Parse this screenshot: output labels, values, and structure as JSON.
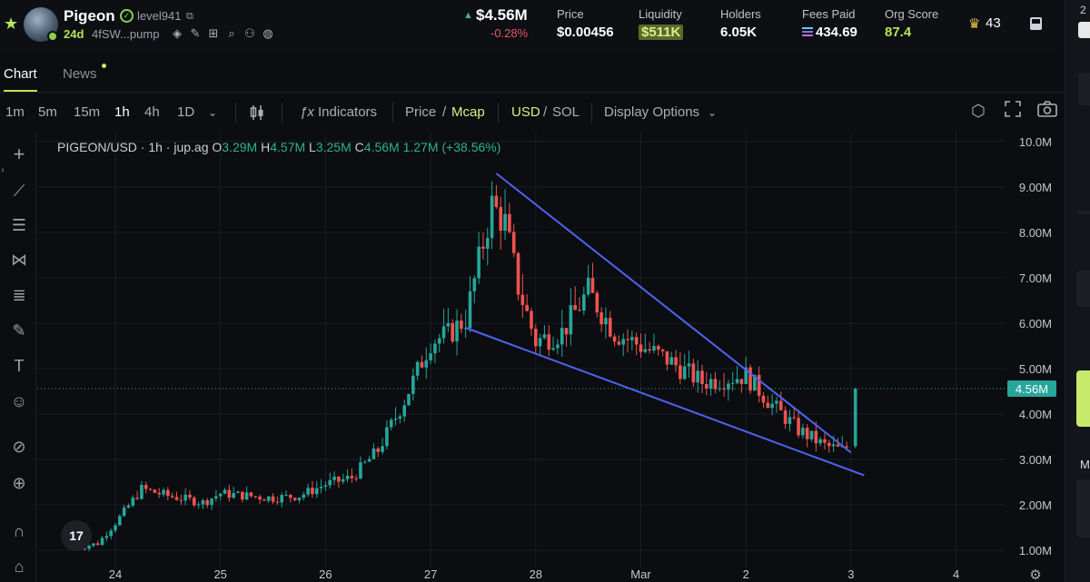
{
  "header": {
    "token_name": "Pigeon",
    "creator": "level941",
    "age": "24d",
    "address": "4fSW...pump",
    "market_cap": "$4.56M",
    "market_cap_change": "-0.28%",
    "stats": [
      {
        "label": "Price",
        "value": "$0.00456"
      },
      {
        "label": "Liquidity",
        "value": "$511K"
      },
      {
        "label": "Holders",
        "value": "6.05K"
      },
      {
        "label": "Fees Paid",
        "value": "434.69"
      },
      {
        "label": "Org Score",
        "value": "87.4"
      }
    ],
    "crown_count": "43"
  },
  "tabs": [
    "Chart",
    "News"
  ],
  "toolbar": {
    "intervals": [
      "1m",
      "5m",
      "15m",
      "1h",
      "4h",
      "1D"
    ],
    "active_interval": "1h",
    "indicators": "Indicators",
    "price": "Price",
    "slash1": "/",
    "mcap": "Mcap",
    "usd": "USD",
    "slash2": "/",
    "sol": "SOL",
    "display_options": "Display Options"
  },
  "legend": {
    "symbol": "PIGEON/USD · 1h · jup.ag",
    "o_label": "O",
    "o": "3.29M",
    "h_label": "H",
    "h": "4.57M",
    "l_label": "L",
    "l": "3.25M",
    "c_label": "C",
    "c": "4.56M",
    "change": "1.27M (+38.56%)"
  },
  "side_panel": {
    "top_text": "2",
    "mid_text": "M"
  },
  "tv_logo": "17",
  "chart_data": {
    "type": "candlestick",
    "y_ticks": [
      "1.00M",
      "2.00M",
      "3.00M",
      "4.00M",
      "5.00M",
      "6.00M",
      "7.00M",
      "8.00M",
      "9.00M",
      "10.0M"
    ],
    "x_ticks": [
      "24",
      "25",
      "26",
      "27",
      "28",
      "Mar",
      "2",
      "3",
      "4"
    ],
    "last_price_label": "4.56M",
    "last_price": 4.56,
    "ylim": [
      0.3,
      10.2
    ],
    "up_color": "#26a69a",
    "down_color": "#ef5350",
    "trendline_color": "#4f63f0",
    "trendlines": [
      {
        "x": [
          "27 15:00",
          "3 00:00"
        ],
        "y": [
          9.3,
          3.15
        ]
      },
      {
        "x": [
          "27 08:00",
          "3 03:00"
        ],
        "y": [
          5.9,
          2.65
        ]
      }
    ],
    "close_path": [
      [
        "23 15:00",
        1.05
      ],
      [
        "23 20:00",
        1.15
      ],
      [
        "24 00:00",
        1.6
      ],
      [
        "24 06:00",
        2.35
      ],
      [
        "24 12:00",
        2.2
      ],
      [
        "24 20:00",
        2.05
      ],
      [
        "25 00:00",
        2.25
      ],
      [
        "25 06:00",
        2.2
      ],
      [
        "25 12:00",
        2.15
      ],
      [
        "25 18:00",
        2.2
      ],
      [
        "26 00:00",
        2.45
      ],
      [
        "26 06:00",
        2.6
      ],
      [
        "26 12:00",
        3.2
      ],
      [
        "26 18:00",
        4.3
      ],
      [
        "27 00:00",
        5.6
      ],
      [
        "27 04:00",
        5.75
      ],
      [
        "27 08:00",
        6.1
      ],
      [
        "27 14:00",
        8.6
      ],
      [
        "27 17:00",
        8.2
      ],
      [
        "27 20:00",
        6.8
      ],
      [
        "28 00:00",
        5.6
      ],
      [
        "28 06:00",
        5.8
      ],
      [
        "28 12:00",
        6.7
      ],
      [
        "28 18:00",
        5.8
      ],
      [
        "29 00:00",
        5.5
      ],
      [
        "29 06:00",
        5.2
      ],
      [
        "29 14:00",
        4.7
      ],
      [
        "2 00:00",
        4.85
      ],
      [
        "2 06:00",
        4.2
      ],
      [
        "2 12:00",
        3.65
      ],
      [
        "2 18:00",
        3.3
      ],
      [
        "2 22:00",
        3.2
      ],
      [
        "3 00:00",
        3.35
      ],
      [
        "3 01:00",
        4.56
      ]
    ]
  }
}
